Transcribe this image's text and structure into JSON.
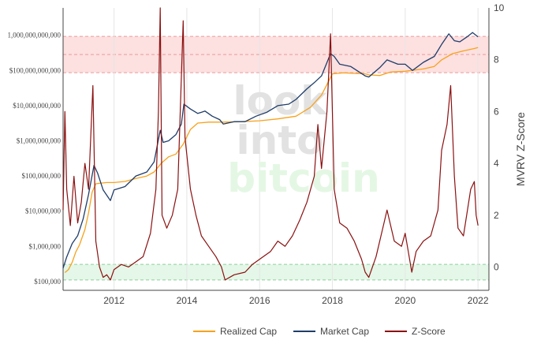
{
  "watermark": {
    "line1": "look",
    "line2": "into",
    "line3": "bitcoin"
  },
  "chart_data": {
    "type": "line",
    "title": "",
    "y_left": {
      "scale": "log",
      "range": [
        56234,
        6000000000000
      ],
      "ticks": [
        {
          "value": 100000,
          "label": "$100,000"
        },
        {
          "value": 1000000,
          "label": "$1,000,000"
        },
        {
          "value": 10000000,
          "label": "$10,000,000"
        },
        {
          "value": 100000000,
          "label": "$100,000,000"
        },
        {
          "value": 1000000000,
          "label": "$1,000,000,000"
        },
        {
          "value": 10000000000,
          "label": "$10,000,000,000"
        },
        {
          "value": 100000000000,
          "label": "$100,000,000,000"
        },
        {
          "value": 1000000000000,
          "label": "1,000,000,000,000"
        }
      ]
    },
    "y_right": {
      "label": "MVRV Z-Score",
      "range": [
        -0.9,
        10
      ],
      "ticks": [
        {
          "value": 0,
          "label": "0"
        },
        {
          "value": 2,
          "label": "2"
        },
        {
          "value": 4,
          "label": "4"
        },
        {
          "value": 6,
          "label": "6"
        },
        {
          "value": 8,
          "label": "8"
        },
        {
          "value": 10,
          "label": "10"
        }
      ]
    },
    "x": {
      "range": [
        2010.6,
        2022.3
      ],
      "ticks": [
        {
          "value": 2012,
          "label": "2012"
        },
        {
          "value": 2014,
          "label": "2014"
        },
        {
          "value": 2016,
          "label": "2016"
        },
        {
          "value": 2018,
          "label": "2018"
        },
        {
          "value": 2020,
          "label": "2020"
        },
        {
          "value": 2022,
          "label": "2022"
        }
      ]
    },
    "bands": [
      {
        "name": "top",
        "from": 7.5,
        "to": 8.9,
        "mid": 8.2,
        "color": "#fde0e0",
        "edge": "#e89a9a"
      },
      {
        "name": "bottom",
        "from": -0.5,
        "to": 0.1,
        "color": "#e4f7e8",
        "edge": "#8ccf9a"
      }
    ],
    "grid": true,
    "legend_position": "bottom-center",
    "series": [
      {
        "name": "Realized Cap",
        "axis": "left",
        "color": "#f7a21b",
        "points": [
          [
            2010.65,
            180000
          ],
          [
            2010.75,
            220000
          ],
          [
            2010.85,
            350000
          ],
          [
            2010.95,
            700000
          ],
          [
            2011.05,
            1100000
          ],
          [
            2011.2,
            3000000
          ],
          [
            2011.3,
            9000000
          ],
          [
            2011.4,
            35000000
          ],
          [
            2011.5,
            60000000
          ],
          [
            2011.6,
            62000000
          ],
          [
            2011.8,
            65000000
          ],
          [
            2012.0,
            65000000
          ],
          [
            2012.3,
            70000000
          ],
          [
            2012.6,
            85000000
          ],
          [
            2012.9,
            100000000
          ],
          [
            2013.1,
            130000000
          ],
          [
            2013.3,
            230000000
          ],
          [
            2013.5,
            350000000
          ],
          [
            2013.7,
            420000000
          ],
          [
            2013.9,
            800000000
          ],
          [
            2014.1,
            2100000000
          ],
          [
            2014.3,
            3200000000
          ],
          [
            2014.6,
            3400000000
          ],
          [
            2015.0,
            3400000000
          ],
          [
            2015.5,
            3500000000
          ],
          [
            2016.0,
            3700000000
          ],
          [
            2016.5,
            4200000000
          ],
          [
            2017.0,
            5000000000
          ],
          [
            2017.4,
            9000000000
          ],
          [
            2017.7,
            20000000000
          ],
          [
            2017.9,
            50000000000
          ],
          [
            2018.0,
            80000000000
          ],
          [
            2018.3,
            85000000000
          ],
          [
            2018.9,
            80000000000
          ],
          [
            2019.0,
            75000000000
          ],
          [
            2019.3,
            72000000000
          ],
          [
            2019.6,
            90000000000
          ],
          [
            2020.0,
            95000000000
          ],
          [
            2020.5,
            110000000000
          ],
          [
            2020.8,
            130000000000
          ],
          [
            2021.0,
            200000000000
          ],
          [
            2021.3,
            300000000000
          ],
          [
            2021.6,
            360000000000
          ],
          [
            2021.9,
            420000000000
          ],
          [
            2022.0,
            450000000000
          ]
        ]
      },
      {
        "name": "Market Cap",
        "axis": "left",
        "color": "#1f3d6b",
        "points": [
          [
            2010.6,
            240000
          ],
          [
            2010.7,
            500000
          ],
          [
            2010.85,
            1200000
          ],
          [
            2011.0,
            2000000
          ],
          [
            2011.15,
            6000000
          ],
          [
            2011.3,
            30000000
          ],
          [
            2011.45,
            200000000
          ],
          [
            2011.55,
            120000000
          ],
          [
            2011.7,
            40000000
          ],
          [
            2011.9,
            20000000
          ],
          [
            2012.0,
            40000000
          ],
          [
            2012.3,
            50000000
          ],
          [
            2012.6,
            100000000
          ],
          [
            2012.9,
            130000000
          ],
          [
            2013.1,
            250000000
          ],
          [
            2013.27,
            2000000000
          ],
          [
            2013.35,
            900000000
          ],
          [
            2013.5,
            1000000000
          ],
          [
            2013.7,
            1500000000
          ],
          [
            2013.85,
            3000000000
          ],
          [
            2013.92,
            11000000000
          ],
          [
            2014.1,
            8000000000
          ],
          [
            2014.3,
            6000000000
          ],
          [
            2014.5,
            7000000000
          ],
          [
            2014.7,
            5000000000
          ],
          [
            2014.9,
            4000000000
          ],
          [
            2015.0,
            3000000000
          ],
          [
            2015.3,
            3500000000
          ],
          [
            2015.6,
            3500000000
          ],
          [
            2015.9,
            5000000000
          ],
          [
            2016.2,
            6500000000
          ],
          [
            2016.5,
            10000000000
          ],
          [
            2016.8,
            11000000000
          ],
          [
            2017.0,
            15000000000
          ],
          [
            2017.3,
            30000000000
          ],
          [
            2017.5,
            45000000000
          ],
          [
            2017.7,
            70000000000
          ],
          [
            2017.95,
            300000000000
          ],
          [
            2018.05,
            250000000000
          ],
          [
            2018.2,
            150000000000
          ],
          [
            2018.5,
            130000000000
          ],
          [
            2018.9,
            70000000000
          ],
          [
            2019.0,
            65000000000
          ],
          [
            2019.3,
            120000000000
          ],
          [
            2019.5,
            200000000000
          ],
          [
            2019.8,
            150000000000
          ],
          [
            2020.0,
            150000000000
          ],
          [
            2020.2,
            100000000000
          ],
          [
            2020.5,
            170000000000
          ],
          [
            2020.8,
            250000000000
          ],
          [
            2021.0,
            550000000000
          ],
          [
            2021.2,
            1100000000000
          ],
          [
            2021.35,
            700000000000
          ],
          [
            2021.5,
            650000000000
          ],
          [
            2021.7,
            900000000000
          ],
          [
            2021.85,
            1200000000000
          ],
          [
            2022.0,
            900000000000
          ]
        ]
      },
      {
        "name": "Z-Score",
        "axis": "right",
        "color": "#8b1010",
        "points": [
          [
            2010.6,
            2.2
          ],
          [
            2010.65,
            6.0
          ],
          [
            2010.7,
            3.0
          ],
          [
            2010.8,
            1.6
          ],
          [
            2010.9,
            3.5
          ],
          [
            2011.0,
            1.7
          ],
          [
            2011.1,
            2.5
          ],
          [
            2011.2,
            4.0
          ],
          [
            2011.3,
            3.0
          ],
          [
            2011.42,
            7.0
          ],
          [
            2011.5,
            1.0
          ],
          [
            2011.6,
            0.0
          ],
          [
            2011.7,
            -0.4
          ],
          [
            2011.8,
            -0.3
          ],
          [
            2011.9,
            -0.5
          ],
          [
            2012.0,
            -0.1
          ],
          [
            2012.2,
            0.1
          ],
          [
            2012.4,
            0.0
          ],
          [
            2012.6,
            0.2
          ],
          [
            2012.8,
            0.4
          ],
          [
            2013.0,
            1.3
          ],
          [
            2013.15,
            3.0
          ],
          [
            2013.22,
            6.0
          ],
          [
            2013.27,
            10.0
          ],
          [
            2013.32,
            2.0
          ],
          [
            2013.45,
            1.5
          ],
          [
            2013.6,
            2.0
          ],
          [
            2013.75,
            3.0
          ],
          [
            2013.9,
            9.5
          ],
          [
            2013.95,
            5.0
          ],
          [
            2014.1,
            3.0
          ],
          [
            2014.25,
            2.0
          ],
          [
            2014.4,
            1.2
          ],
          [
            2014.6,
            0.8
          ],
          [
            2014.8,
            0.4
          ],
          [
            2014.95,
            0.0
          ],
          [
            2015.05,
            -0.5
          ],
          [
            2015.3,
            -0.3
          ],
          [
            2015.6,
            -0.2
          ],
          [
            2015.8,
            0.1
          ],
          [
            2016.0,
            0.3
          ],
          [
            2016.3,
            0.6
          ],
          [
            2016.5,
            1.0
          ],
          [
            2016.7,
            0.8
          ],
          [
            2016.9,
            1.2
          ],
          [
            2017.1,
            1.8
          ],
          [
            2017.3,
            2.5
          ],
          [
            2017.5,
            3.5
          ],
          [
            2017.6,
            5.5
          ],
          [
            2017.7,
            3.8
          ],
          [
            2017.85,
            6.0
          ],
          [
            2017.95,
            9.0
          ],
          [
            2018.05,
            3.0
          ],
          [
            2018.2,
            1.7
          ],
          [
            2018.4,
            1.5
          ],
          [
            2018.6,
            1.0
          ],
          [
            2018.8,
            0.3
          ],
          [
            2018.9,
            -0.2
          ],
          [
            2019.0,
            -0.4
          ],
          [
            2019.2,
            0.4
          ],
          [
            2019.4,
            1.6
          ],
          [
            2019.5,
            2.2
          ],
          [
            2019.7,
            1.0
          ],
          [
            2019.9,
            0.8
          ],
          [
            2020.0,
            1.3
          ],
          [
            2020.18,
            -0.2
          ],
          [
            2020.3,
            0.6
          ],
          [
            2020.5,
            1.0
          ],
          [
            2020.7,
            1.2
          ],
          [
            2020.9,
            2.2
          ],
          [
            2021.0,
            4.5
          ],
          [
            2021.15,
            5.5
          ],
          [
            2021.25,
            7.0
          ],
          [
            2021.35,
            3.5
          ],
          [
            2021.45,
            1.5
          ],
          [
            2021.6,
            1.2
          ],
          [
            2021.8,
            3.0
          ],
          [
            2021.9,
            3.3
          ],
          [
            2021.95,
            2.0
          ],
          [
            2022.0,
            1.6
          ]
        ]
      }
    ]
  },
  "legend": [
    {
      "label": "Realized Cap",
      "color": "#f7a21b"
    },
    {
      "label": "Market Cap",
      "color": "#1f3d6b"
    },
    {
      "label": "Z-Score",
      "color": "#8b1010"
    }
  ]
}
